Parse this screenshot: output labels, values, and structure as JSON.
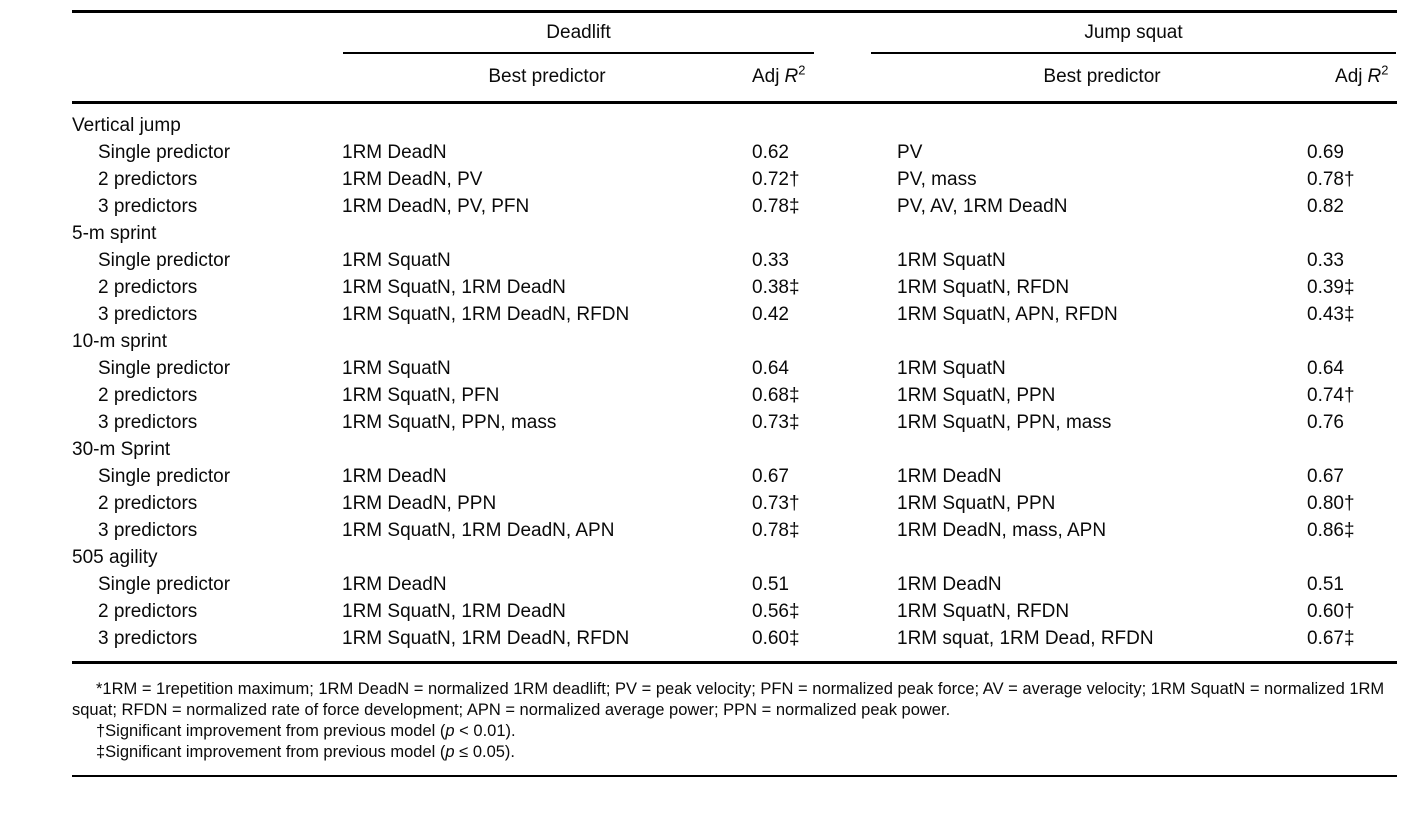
{
  "header": {
    "groups": [
      {
        "label": "Deadlift"
      },
      {
        "label": "Jump squat"
      }
    ],
    "subcols": {
      "predictor": "Best predictor",
      "adj": "Adj",
      "r": "R",
      "sup": "2"
    }
  },
  "sections": [
    {
      "label": "Vertical jump",
      "rows": [
        {
          "label": "Single predictor",
          "dl_pred": "1RM DeadN",
          "dl_r2": "0.62",
          "js_pred": "PV",
          "js_r2": "0.69"
        },
        {
          "label": "2 predictors",
          "dl_pred": "1RM DeadN, PV",
          "dl_r2": "0.72†",
          "js_pred": "PV, mass",
          "js_r2": "0.78†"
        },
        {
          "label": "3 predictors",
          "dl_pred": "1RM DeadN, PV, PFN",
          "dl_r2": "0.78‡",
          "js_pred": "PV, AV, 1RM DeadN",
          "js_r2": "0.82"
        }
      ]
    },
    {
      "label": "5-m sprint",
      "rows": [
        {
          "label": "Single predictor",
          "dl_pred": "1RM SquatN",
          "dl_r2": "0.33",
          "js_pred": "1RM SquatN",
          "js_r2": "0.33"
        },
        {
          "label": "2 predictors",
          "dl_pred": "1RM SquatN, 1RM DeadN",
          "dl_r2": "0.38‡",
          "js_pred": "1RM SquatN, RFDN",
          "js_r2": "0.39‡"
        },
        {
          "label": "3 predictors",
          "dl_pred": "1RM SquatN, 1RM DeadN, RFDN",
          "dl_r2": "0.42",
          "js_pred": "1RM SquatN, APN, RFDN",
          "js_r2": "0.43‡"
        }
      ]
    },
    {
      "label": "10-m sprint",
      "rows": [
        {
          "label": "Single predictor",
          "dl_pred": "1RM SquatN",
          "dl_r2": "0.64",
          "js_pred": "1RM SquatN",
          "js_r2": "0.64"
        },
        {
          "label": "2 predictors",
          "dl_pred": "1RM SquatN, PFN",
          "dl_r2": "0.68‡",
          "js_pred": "1RM SquatN, PPN",
          "js_r2": "0.74†"
        },
        {
          "label": "3 predictors",
          "dl_pred": "1RM SquatN, PPN, mass",
          "dl_r2": "0.73‡",
          "js_pred": "1RM SquatN, PPN, mass",
          "js_r2": "0.76"
        }
      ]
    },
    {
      "label": "30-m Sprint",
      "rows": [
        {
          "label": "Single predictor",
          "dl_pred": "1RM DeadN",
          "dl_r2": "0.67",
          "js_pred": "1RM DeadN",
          "js_r2": "0.67"
        },
        {
          "label": "2 predictors",
          "dl_pred": "1RM DeadN, PPN",
          "dl_r2": "0.73†",
          "js_pred": "1RM SquatN, PPN",
          "js_r2": "0.80†"
        },
        {
          "label": "3 predictors",
          "dl_pred": "1RM SquatN, 1RM DeadN, APN",
          "dl_r2": "0.78‡",
          "js_pred": "1RM DeadN, mass, APN",
          "js_r2": "0.86‡"
        }
      ]
    },
    {
      "label": "505 agility",
      "rows": [
        {
          "label": "Single predictor",
          "dl_pred": "1RM DeadN",
          "dl_r2": "0.51",
          "js_pred": "1RM DeadN",
          "js_r2": "0.51"
        },
        {
          "label": "2 predictors",
          "dl_pred": "1RM SquatN, 1RM DeadN",
          "dl_r2": "0.56‡",
          "js_pred": "1RM SquatN, RFDN",
          "js_r2": "0.60†"
        },
        {
          "label": "3 predictors",
          "dl_pred": "1RM SquatN, 1RM DeadN, RFDN",
          "dl_r2": "0.60‡",
          "js_pred": "1RM squat, 1RM Dead, RFDN",
          "js_r2": "0.67‡"
        }
      ]
    }
  ],
  "footnotes": {
    "abbrev": "*1RM = 1repetition maximum; 1RM DeadN = normalized 1RM deadlift; PV = peak velocity; PFN = normalized peak force; AV = average velocity; 1RM SquatN = normalized 1RM squat; RFDN = normalized rate of force development; APN = normalized average power; PPN = normalized peak power.",
    "dagger": {
      "pre": "†Significant improvement from previous model (",
      "p": "p",
      "post": " < 0.01)."
    },
    "ddagger": {
      "pre": "‡Significant improvement from previous model (",
      "p": "p",
      "post": " ≤ 0.05)."
    }
  }
}
